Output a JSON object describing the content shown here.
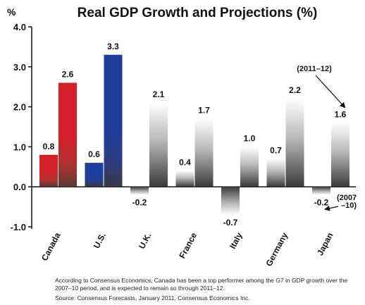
{
  "chart_data": {
    "type": "bar",
    "title": "Real GDP Growth and Projections (%)",
    "unit_label": "%",
    "ylim": [
      -1.0,
      4.0
    ],
    "yticks": [
      "4.0",
      "3.0",
      "2.0",
      "1.0",
      "0.0",
      "-1.0"
    ],
    "ytick_values": [
      4.0,
      3.0,
      2.0,
      1.0,
      0.0,
      -1.0
    ],
    "categories": [
      "Canada",
      "U.S.",
      "U.K.",
      "France",
      "Italy",
      "Germany",
      "Japan"
    ],
    "series": [
      {
        "name": "(2007–10)",
        "values": [
          0.8,
          0.6,
          -0.2,
          0.4,
          -0.7,
          0.7,
          -0.2
        ]
      },
      {
        "name": "(2011–12)",
        "values": [
          2.6,
          3.3,
          2.1,
          1.7,
          1.0,
          2.2,
          1.6
        ]
      }
    ],
    "value_labels": [
      [
        "0.8",
        "0.6",
        "-0.2",
        "0.4",
        "-0.7",
        "0.7",
        "-0.2"
      ],
      [
        "2.6",
        "3.3",
        "2.1",
        "1.7",
        "1.0",
        "2.2",
        "1.6"
      ]
    ],
    "annotations": {
      "projection_label": "(2011–12)",
      "period_label_line1": "(2007",
      "period_label_line2": "–10)"
    },
    "colors": {
      "canada": "#d42027",
      "us": "#1f3d9c",
      "gray_dark": "#3a3a3a",
      "gray_light": "#ffffff"
    },
    "grid": false,
    "legend": "none"
  },
  "notes": {
    "body": "According to Consensus Economics, Canada has been a top performer among the G7 in GDP growth over the 2007–10 period, and is expected to remain so through 2011–12.",
    "source": "Source: Consensus Forecasts, January 2011, Consensus Economics Inc."
  }
}
